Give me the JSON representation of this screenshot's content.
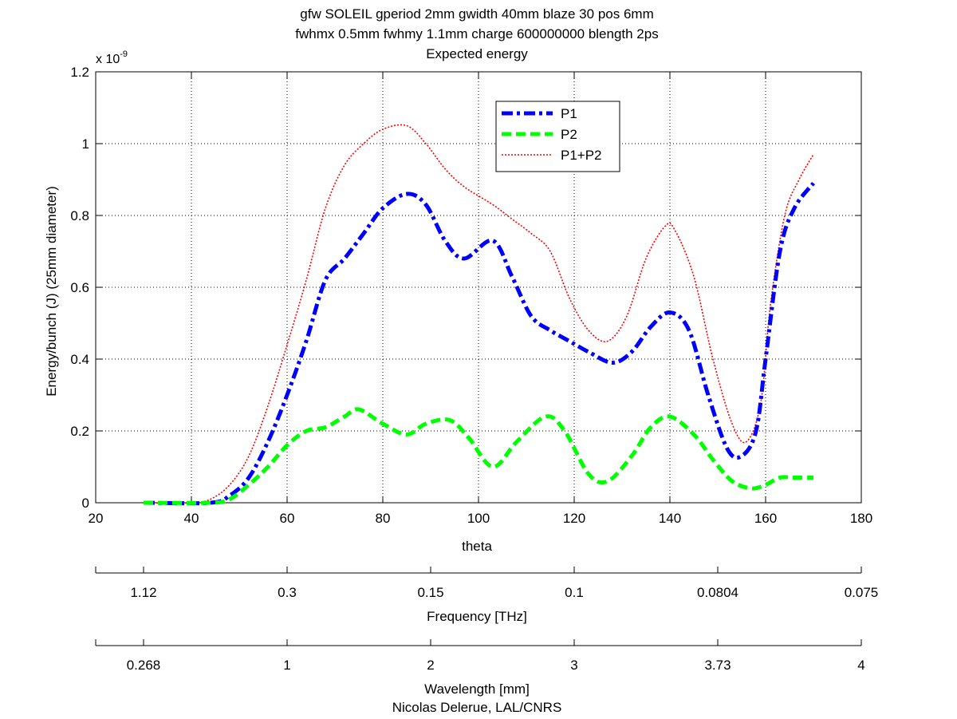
{
  "chart_data": {
    "type": "line",
    "title_lines": [
      "gfw SOLEIL gperiod 2mm gwidth 40mm blaze 30 pos 6mm",
      "fwhmx 0.5mm fwhmy 1.1mm charge 600000000 blength 2ps",
      "Expected energy"
    ],
    "xlabel": "theta",
    "ylabel": "Energy/bunch (J) (25mm diameter)",
    "y_exponent_label": "x 10",
    "y_exponent": "-9",
    "xlim": [
      20,
      180
    ],
    "ylim": [
      0,
      1.2
    ],
    "x_ticks": [
      20,
      40,
      60,
      80,
      100,
      120,
      140,
      160,
      180
    ],
    "y_ticks": [
      0,
      0.2,
      0.4,
      0.6,
      0.8,
      1,
      1.2
    ],
    "grid": true,
    "legend_position": "top-center",
    "series": [
      {
        "name": "P1",
        "color": "#0000ff",
        "style": "dash-dot",
        "x": [
          30,
          44,
          48,
          52,
          56,
          60,
          64,
          68,
          72,
          76,
          80,
          85,
          89,
          93,
          97,
          103,
          107,
          111,
          115,
          119,
          123,
          128,
          132,
          136,
          140,
          144,
          148,
          152,
          155,
          158,
          160,
          163,
          166,
          170
        ],
        "y": [
          0,
          0,
          0.02,
          0.07,
          0.17,
          0.3,
          0.45,
          0.62,
          0.68,
          0.75,
          0.82,
          0.86,
          0.83,
          0.73,
          0.68,
          0.73,
          0.63,
          0.52,
          0.48,
          0.45,
          0.42,
          0.39,
          0.42,
          0.49,
          0.53,
          0.48,
          0.3,
          0.15,
          0.13,
          0.2,
          0.4,
          0.7,
          0.82,
          0.89
        ]
      },
      {
        "name": "P2",
        "color": "#00ff00",
        "style": "dashed",
        "x": [
          30,
          44,
          48,
          52,
          56,
          60,
          64,
          68,
          72,
          75,
          80,
          85,
          89,
          94,
          98,
          103,
          108,
          114,
          118,
          123,
          127,
          132,
          136,
          140,
          145,
          149,
          153,
          157,
          160,
          163,
          166,
          170
        ],
        "y": [
          0,
          0,
          0.01,
          0.05,
          0.1,
          0.16,
          0.2,
          0.21,
          0.24,
          0.26,
          0.22,
          0.19,
          0.22,
          0.23,
          0.18,
          0.1,
          0.17,
          0.24,
          0.2,
          0.08,
          0.06,
          0.13,
          0.21,
          0.24,
          0.19,
          0.12,
          0.06,
          0.04,
          0.05,
          0.07,
          0.07,
          0.07
        ]
      },
      {
        "name": "P1+P2",
        "color": "#ff0000",
        "style": "dotted",
        "x": [
          30,
          40,
          44,
          48,
          52,
          56,
          60,
          64,
          68,
          72,
          76,
          80,
          85,
          89,
          93,
          97,
          103,
          107,
          111,
          115,
          119,
          123,
          127,
          131,
          135,
          139,
          141,
          145,
          149,
          153,
          156,
          159,
          161,
          164,
          167,
          170
        ],
        "y": [
          0,
          0,
          0.01,
          0.05,
          0.13,
          0.27,
          0.44,
          0.62,
          0.82,
          0.94,
          1.0,
          1.04,
          1.05,
          1.0,
          0.93,
          0.88,
          0.83,
          0.79,
          0.75,
          0.7,
          0.57,
          0.48,
          0.45,
          0.52,
          0.68,
          0.77,
          0.76,
          0.63,
          0.4,
          0.22,
          0.17,
          0.28,
          0.55,
          0.8,
          0.9,
          0.97
        ]
      }
    ],
    "secondary_axes": [
      {
        "label": "Frequency [THz]",
        "tick_labels": [
          "1.12",
          "0.3",
          "0.15",
          "0.1",
          "0.0804",
          "0.075"
        ],
        "tick_theta": [
          30,
          60,
          90,
          120,
          150,
          180
        ]
      },
      {
        "label": "Wavelength [mm]",
        "tick_labels": [
          "0.268",
          "1",
          "2",
          "3",
          "3.73",
          "4"
        ],
        "tick_theta": [
          30,
          60,
          90,
          120,
          150,
          180
        ]
      }
    ],
    "credit": "Nicolas Delerue, LAL/CNRS"
  }
}
